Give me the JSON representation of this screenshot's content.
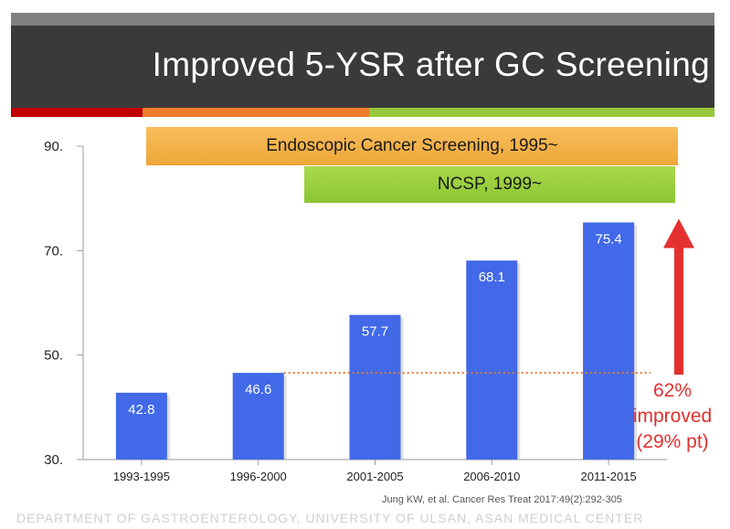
{
  "header": {
    "title": "Improved 5-YSR after GC Screening"
  },
  "banners": {
    "endoscopic": "Endoscopic Cancer Screening, 1995~",
    "ncsp": "NCSP, 1999~"
  },
  "annotation": {
    "line1": "62%",
    "line2": "improved",
    "line3": "(29% pt)"
  },
  "citation": "Jung KW, et al. Cancer Res Treat 2017:49(2):292-305",
  "footer": "DEPARTMENT OF GASTROENTEROLOGY, UNIVERSITY OF ULSAN, ASAN MEDICAL CENTER",
  "colors": {
    "bar": "#4169e8",
    "reference_line": "#e8772e",
    "arrow": "#e53030",
    "banner_orange": "#f2b048",
    "banner_green": "#96cf3b"
  },
  "chart_data": {
    "type": "bar",
    "title": "Improved 5-YSR after GC Screening",
    "categories": [
      "1993-1995",
      "1996-2000",
      "2001-2005",
      "2006-2010",
      "2011-2015"
    ],
    "values": [
      42.8,
      46.6,
      57.7,
      68.1,
      75.4
    ],
    "data_labels": [
      "42.8",
      "46.6",
      "57.7",
      "68.1",
      "75.4"
    ],
    "y_ticks": [
      30,
      50,
      70,
      90
    ],
    "y_tick_labels": [
      "30.",
      "50.",
      "70.",
      "90."
    ],
    "ylim": [
      30,
      90
    ],
    "xlabel": "",
    "ylabel": "",
    "grid": false,
    "reference_value": 46.6
  }
}
